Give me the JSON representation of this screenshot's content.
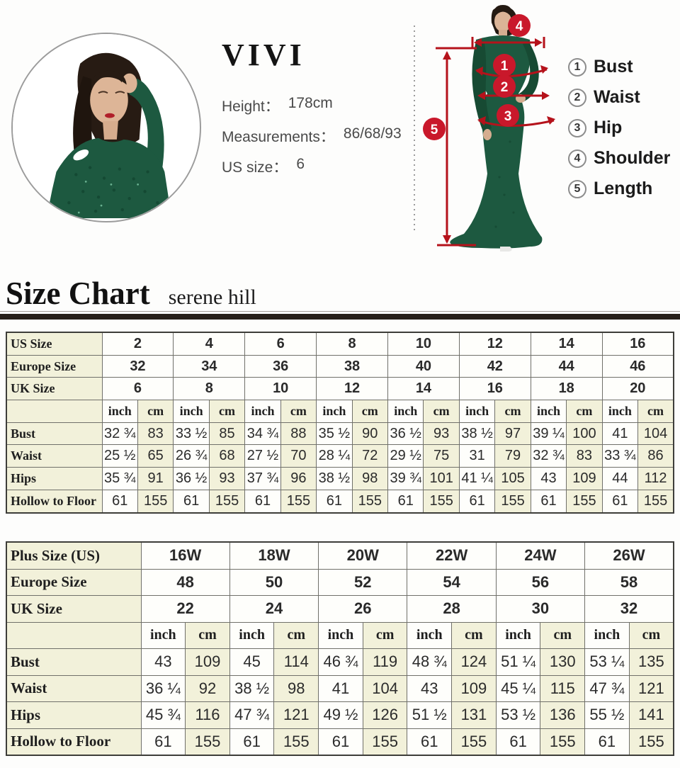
{
  "profile": {
    "brand": "VIVI",
    "lines": [
      {
        "label": "Height：",
        "value": "178cm"
      },
      {
        "label": "Measurements：",
        "value": "86/68/93"
      },
      {
        "label": "US size：",
        "value": "6"
      }
    ]
  },
  "diagram": {
    "accent_color": "#c9182b",
    "markers": [
      "1",
      "2",
      "3",
      "4",
      "5"
    ],
    "legend": [
      {
        "num": "1",
        "label": "Bust"
      },
      {
        "num": "2",
        "label": "Waist"
      },
      {
        "num": "3",
        "label": "Hip"
      },
      {
        "num": "4",
        "label": "Shoulder"
      },
      {
        "num": "5",
        "label": "Length"
      }
    ]
  },
  "heading": {
    "title": "Size Chart",
    "subtitle": "serene hill"
  },
  "chart_data": [
    {
      "type": "table",
      "title": "Size Chart",
      "units": [
        "inch",
        "cm"
      ],
      "size_rows": [
        {
          "label": "US Size",
          "values": [
            "2",
            "4",
            "6",
            "8",
            "10",
            "12",
            "14",
            "16"
          ]
        },
        {
          "label": "Europe Size",
          "values": [
            "32",
            "34",
            "36",
            "38",
            "40",
            "42",
            "44",
            "46"
          ]
        },
        {
          "label": "UK Size",
          "values": [
            "6",
            "8",
            "10",
            "12",
            "14",
            "16",
            "18",
            "20"
          ]
        }
      ],
      "measure_rows": [
        {
          "label": "Bust",
          "inch": [
            "32 ¾",
            "33 ½",
            "34 ¾",
            "35 ½",
            "36 ½",
            "38 ½",
            "39 ¼",
            "41"
          ],
          "cm": [
            "83",
            "85",
            "88",
            "90",
            "93",
            "97",
            "100",
            "104"
          ]
        },
        {
          "label": "Waist",
          "inch": [
            "25 ½",
            "26 ¾",
            "27 ½",
            "28 ¼",
            "29 ½",
            "31",
            "32 ¾",
            "33 ¾"
          ],
          "cm": [
            "65",
            "68",
            "70",
            "72",
            "75",
            "79",
            "83",
            "86"
          ]
        },
        {
          "label": "Hips",
          "inch": [
            "35 ¾",
            "36 ½",
            "37 ¾",
            "38 ½",
            "39 ¾",
            "41 ¼",
            "43",
            "44"
          ],
          "cm": [
            "91",
            "93",
            "96",
            "98",
            "101",
            "105",
            "109",
            "112"
          ]
        },
        {
          "label": "Hollow to Floor",
          "inch": [
            "61",
            "61",
            "61",
            "61",
            "61",
            "61",
            "61",
            "61"
          ],
          "cm": [
            "155",
            "155",
            "155",
            "155",
            "155",
            "155",
            "155",
            "155"
          ]
        }
      ]
    },
    {
      "type": "table",
      "title": "Plus Size Chart",
      "units": [
        "inch",
        "cm"
      ],
      "size_rows": [
        {
          "label": "Plus Size (US)",
          "values": [
            "16W",
            "18W",
            "20W",
            "22W",
            "24W",
            "26W"
          ]
        },
        {
          "label": "Europe Size",
          "values": [
            "48",
            "50",
            "52",
            "54",
            "56",
            "58"
          ]
        },
        {
          "label": "UK Size",
          "values": [
            "22",
            "24",
            "26",
            "28",
            "30",
            "32"
          ]
        }
      ],
      "measure_rows": [
        {
          "label": "Bust",
          "inch": [
            "43",
            "45",
            "46 ¾",
            "48 ¾",
            "51 ¼",
            "53 ¼"
          ],
          "cm": [
            "109",
            "114",
            "119",
            "124",
            "130",
            "135"
          ]
        },
        {
          "label": "Waist",
          "inch": [
            "36 ¼",
            "38 ½",
            "41",
            "43",
            "45 ¼",
            "47 ¾"
          ],
          "cm": [
            "92",
            "98",
            "104",
            "109",
            "115",
            "121"
          ]
        },
        {
          "label": "Hips",
          "inch": [
            "45 ¾",
            "47 ¾",
            "49 ½",
            "51 ½",
            "53 ½",
            "55 ½"
          ],
          "cm": [
            "116",
            "121",
            "126",
            "131",
            "136",
            "141"
          ]
        },
        {
          "label": "Hollow to Floor",
          "inch": [
            "61",
            "61",
            "61",
            "61",
            "61",
            "61"
          ],
          "cm": [
            "155",
            "155",
            "155",
            "155",
            "155",
            "155"
          ]
        }
      ]
    }
  ]
}
